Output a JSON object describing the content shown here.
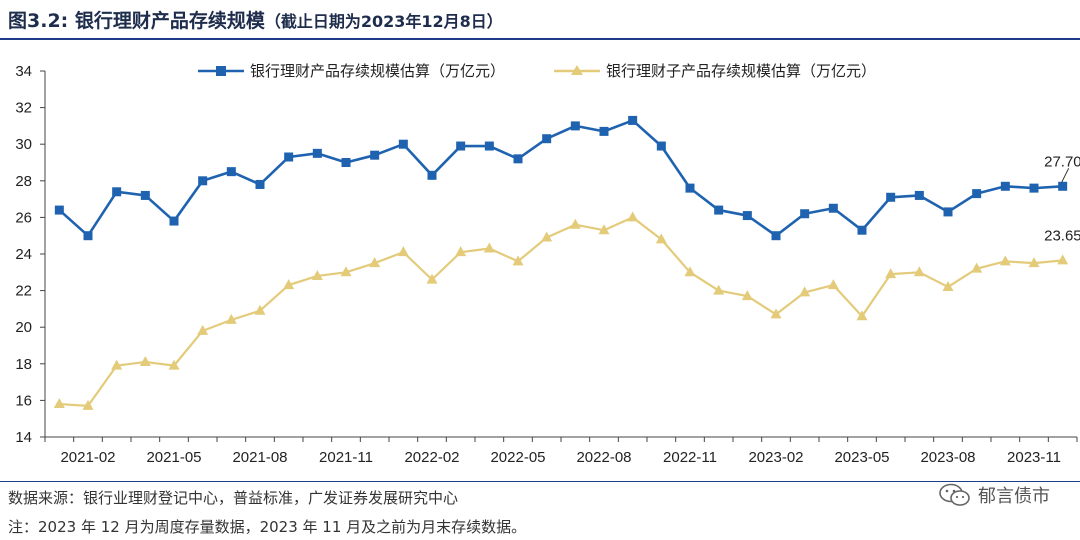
{
  "header": {
    "title": "图3.2:  银行理财产品存续规模",
    "subtitle": "（截止日期为2023年12月8日）"
  },
  "footer": {
    "source": "数据来源：银行业理财登记中心，普益标准，广发证券发展研究中心",
    "note": "注：2023 年 12 月为周度存量数据，2023 年 11 月及之前为月末存续数据。",
    "watermark": "郁言债市",
    "watermark_icon": "wechat-icon"
  },
  "colors": {
    "series1": "#1f63b0",
    "series2": "#e3cb7a",
    "axis": "#444444"
  },
  "chart_data": {
    "type": "line",
    "ylim": [
      14,
      34
    ],
    "yticks": [
      14,
      16,
      18,
      20,
      22,
      24,
      26,
      28,
      30,
      32,
      34
    ],
    "x_tick_labels": [
      "2021-02",
      "2021-05",
      "2021-08",
      "2021-11",
      "2022-02",
      "2022-05",
      "2022-08",
      "2022-11",
      "2023-02",
      "2023-05",
      "2023-08",
      "2023-11"
    ],
    "x_tick_positions": [
      1,
      4,
      7,
      10,
      13,
      16,
      19,
      22,
      25,
      28,
      31,
      34
    ],
    "x": [
      "2021-01",
      "2021-02",
      "2021-03",
      "2021-04",
      "2021-05",
      "2021-06",
      "2021-07",
      "2021-08",
      "2021-09",
      "2021-10",
      "2021-11",
      "2021-12",
      "2022-01",
      "2022-02",
      "2022-03",
      "2022-04",
      "2022-05",
      "2022-06",
      "2022-07",
      "2022-08",
      "2022-09",
      "2022-10",
      "2022-11",
      "2022-12",
      "2023-01",
      "2023-02",
      "2023-03",
      "2023-04",
      "2023-05",
      "2023-06",
      "2023-07",
      "2023-08",
      "2023-09",
      "2023-10",
      "2023-11",
      "2023-12"
    ],
    "series": [
      {
        "name": "银行理财产品存续规模估算（万亿元）",
        "color": "#1f63b0",
        "marker": "square",
        "values": [
          26.4,
          25.0,
          27.4,
          27.2,
          25.8,
          28.0,
          28.5,
          27.8,
          29.3,
          29.5,
          29.0,
          29.4,
          30.0,
          28.3,
          29.9,
          29.9,
          29.2,
          30.3,
          31.0,
          30.7,
          31.3,
          29.9,
          27.6,
          26.4,
          26.1,
          25.0,
          26.2,
          26.5,
          25.3,
          27.1,
          27.2,
          26.3,
          27.3,
          27.7,
          27.6,
          27.7
        ]
      },
      {
        "name": "银行理财子产品存续规模估算（万亿元）",
        "color": "#e3cb7a",
        "marker": "triangle",
        "values": [
          15.8,
          15.7,
          17.9,
          18.1,
          17.9,
          19.8,
          20.4,
          20.9,
          22.3,
          22.8,
          23.0,
          23.5,
          24.1,
          22.6,
          24.1,
          24.3,
          23.6,
          24.9,
          25.6,
          25.3,
          26.0,
          24.8,
          23.0,
          22.0,
          21.7,
          20.7,
          21.9,
          22.3,
          20.6,
          22.9,
          23.0,
          22.2,
          23.2,
          23.6,
          23.5,
          23.65
        ]
      }
    ],
    "end_labels": [
      "27.70",
      "23.65"
    ]
  }
}
